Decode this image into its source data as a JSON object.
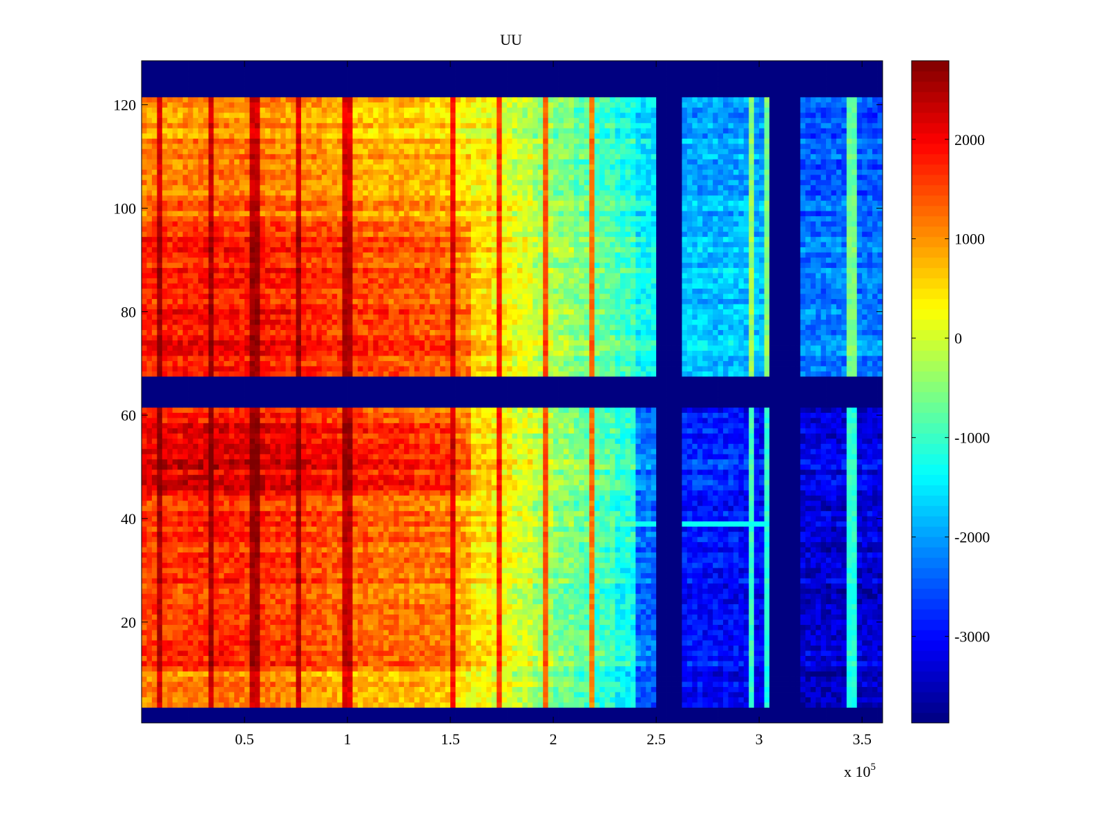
{
  "chart_data": {
    "type": "heatmap",
    "title": "UU",
    "xlabel": "",
    "ylabel": "",
    "x_exponent_label": "x 10",
    "x_exponent": "5",
    "xlim": [
      0,
      360000
    ],
    "ylim": [
      0.5,
      128.5
    ],
    "clim": [
      -3870,
      2790
    ],
    "colormap": "jet",
    "xticks": [
      50000,
      100000,
      150000,
      200000,
      250000,
      300000,
      350000
    ],
    "xtick_labels": [
      "0.5",
      "1",
      "1.5",
      "2",
      "2.5",
      "3",
      "3.5"
    ],
    "yticks": [
      20,
      40,
      60,
      80,
      100,
      120
    ],
    "ytick_labels": [
      "20",
      "40",
      "60",
      "80",
      "100",
      "120"
    ],
    "colorbar_ticks": [
      2000,
      1000,
      0,
      -1000,
      -2000,
      -3000
    ],
    "colorbar_tick_labels": [
      "2000",
      "1000",
      "0",
      "-1000",
      "-2000",
      "-3000"
    ],
    "fill_value": -3870,
    "masked_rows": [
      [
        1,
        3
      ],
      [
        62,
        67
      ],
      [
        122,
        128
      ]
    ],
    "masked_x_ranges": [
      [
        250000,
        262000
      ],
      [
        306000,
        319000
      ]
    ],
    "x_bin_width": 10000,
    "blocks": [
      {
        "rows": [
          68,
          121
        ],
        "x_profile": [
          1500,
          1550,
          1600,
          1600,
          1600,
          1600,
          1550,
          1500,
          1450,
          1350,
          1300,
          1250,
          1250,
          1200,
          1150,
          900,
          500,
          300,
          100,
          -200,
          -400,
          -600,
          -800,
          -1000,
          -1400,
          -1700,
          -1800,
          -1800,
          -1800,
          -1800,
          -1850,
          -1900,
          -2300,
          -2300,
          -2300,
          -2300
        ],
        "row_offsets": [
          {
            "rows": [
              68,
              80
            ],
            "offset": 300
          },
          {
            "rows": [
              81,
              97
            ],
            "offset": 200
          },
          {
            "rows": [
              98,
              110
            ],
            "offset": -300
          },
          {
            "rows": [
              111,
              121
            ],
            "offset": -500
          }
        ]
      },
      {
        "rows": [
          4,
          61
        ],
        "x_profile": [
          1600,
          1650,
          1700,
          1700,
          1700,
          1700,
          1650,
          1600,
          1500,
          1400,
          1350,
          1300,
          1300,
          1250,
          1200,
          900,
          500,
          300,
          50,
          -250,
          -500,
          -700,
          -900,
          -1200,
          -2300,
          -2800,
          -2900,
          -2900,
          -2950,
          -3000,
          -3050,
          -3100,
          -3300,
          -3300,
          -3300,
          -3300
        ],
        "row_offsets": [
          {
            "rows": [
              4,
              10
            ],
            "offset": -500
          },
          {
            "rows": [
              11,
              44
            ],
            "offset": 0
          },
          {
            "rows": [
              45,
              58
            ],
            "offset": 500
          },
          {
            "rows": [
              59,
              61
            ],
            "offset": 100
          }
        ]
      }
    ],
    "streaks": [
      {
        "x": 8000,
        "value": 2600
      },
      {
        "x": 33000,
        "value": 2600
      },
      {
        "x": 55000,
        "value": 2600
      },
      {
        "x": 77000,
        "value": 2600
      },
      {
        "x": 100000,
        "value": 2600
      },
      {
        "x": 152000,
        "value": 2500
      },
      {
        "x": 174000,
        "value": 2400
      },
      {
        "x": 196000,
        "value": 2300
      },
      {
        "x": 218000,
        "value": 2300
      },
      {
        "x": 297000,
        "value": 300
      },
      {
        "x": 305000,
        "value": 0
      },
      {
        "x": 345000,
        "value": 300
      }
    ],
    "row_anomaly": {
      "row": 39,
      "x_range": [
        240000,
        312000
      ],
      "value": -1300
    }
  }
}
